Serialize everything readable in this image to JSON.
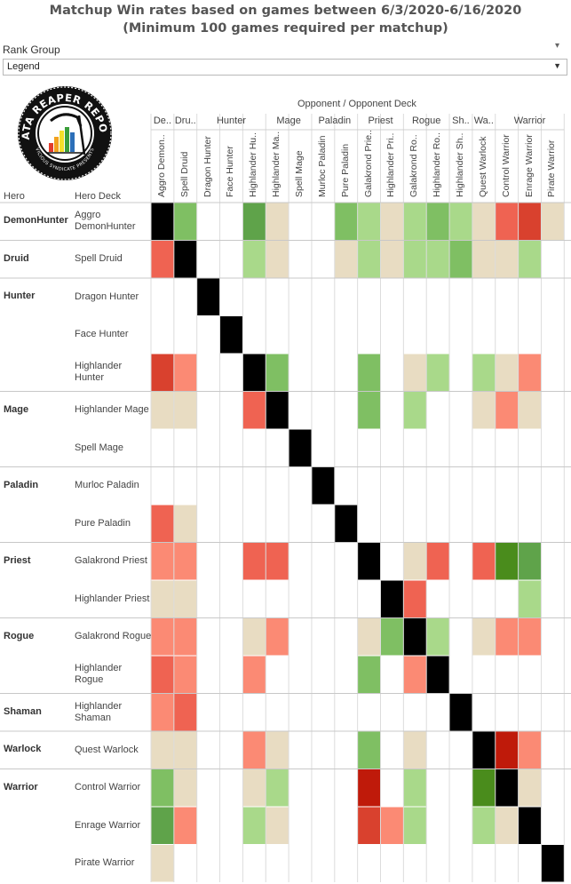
{
  "title": {
    "line1": "Matchup Win rates based on games between 6/3/2020-6/16/2020",
    "line2": "(Minimum 100 games required per matchup)"
  },
  "filter": {
    "label": "Rank Group",
    "value": "Legend"
  },
  "headers": {
    "opponent_title": "Opponent  /  Opponent Deck",
    "hero": "Hero",
    "hero_deck": "Hero Deck"
  },
  "colors": {
    "dark_green": "#4a8c1c",
    "green": "#5fa34a",
    "med_green": "#7fbf63",
    "light_green": "#a9d98a",
    "tan": "#e8dcc2",
    "light_red": "#fb8a74",
    "red": "#ef6352",
    "dark_red": "#d9412e",
    "crimson": "#bf1a0a",
    "black": "#000000"
  },
  "chart_data": {
    "type": "heatmap",
    "note": "",
    "col_classes": [
      {
        "label": "De..",
        "span": 1
      },
      {
        "label": "Dru..",
        "span": 1
      },
      {
        "label": "Hunter",
        "span": 3
      },
      {
        "label": "Mage",
        "span": 2
      },
      {
        "label": "Paladin",
        "span": 2
      },
      {
        "label": "Priest",
        "span": 2
      },
      {
        "label": "Rogue",
        "span": 2
      },
      {
        "label": "Sh..",
        "span": 1
      },
      {
        "label": "Wa..",
        "span": 1
      },
      {
        "label": "Warrior",
        "span": 3
      }
    ],
    "col_decks": [
      "Aggro Demon..",
      "Spell Druid",
      "Dragon Hunter",
      "Face Hunter",
      "Highlander Hu..",
      "Highlander Ma..",
      "Spell Mage",
      "Murloc Paladin",
      "Pure Paladin",
      "Galakrond Prie..",
      "Highlander Pri..",
      "Galakrond Ro..",
      "Highlander Ro..",
      "Highlander Sh..",
      "Quest Warlock",
      "Control Warrior",
      "Enrage Warrior",
      "Pirate Warrior"
    ],
    "row_groups": [
      {
        "hero": "DemonHunter",
        "rows": 1
      },
      {
        "hero": "Druid",
        "rows": 1
      },
      {
        "hero": "Hunter",
        "rows": 3
      },
      {
        "hero": "Mage",
        "rows": 2
      },
      {
        "hero": "Paladin",
        "rows": 2
      },
      {
        "hero": "Priest",
        "rows": 2
      },
      {
        "hero": "Rogue",
        "rows": 2
      },
      {
        "hero": "Shaman",
        "rows": 1
      },
      {
        "hero": "Warlock",
        "rows": 1
      },
      {
        "hero": "Warrior",
        "rows": 3
      }
    ],
    "row_decks": [
      "Aggro DemonHunter",
      "Spell Druid",
      "Dragon Hunter",
      "Face Hunter",
      "Highlander Hunter",
      "Highlander Mage",
      "Spell Mage",
      "Murloc Paladin",
      "Pure Paladin",
      "Galakrond Priest",
      "Highlander Priest",
      "Galakrond Rogue",
      "Highlander Rogue",
      "Highlander Shaman",
      "Quest Warlock",
      "Control Warrior",
      "Enrage Warrior",
      "Pirate Warrior"
    ],
    "legend_codes": {
      "K": "mirror (black)",
      "DG": "dark green",
      "G": "green",
      "MG": "medium green",
      "LG": "light green",
      "T": "tan",
      "LR": "light red",
      "R": "red",
      "DR": "dark red",
      "CR": "crimson",
      "": "no data"
    },
    "cells": [
      [
        "K",
        "MG",
        "",
        "",
        "G",
        "T",
        "",
        "",
        "MG",
        "LG",
        "T",
        "LG",
        "MG",
        "LG",
        "T",
        "R",
        "DR",
        "T"
      ],
      [
        "R",
        "K",
        "",
        "",
        "LG",
        "T",
        "",
        "",
        "T",
        "LG",
        "T",
        "LG",
        "LG",
        "MG",
        "T",
        "T",
        "LG",
        ""
      ],
      [
        "",
        "",
        "K",
        "",
        "",
        "",
        "",
        "",
        "",
        "",
        "",
        "",
        "",
        "",
        "",
        "",
        "",
        ""
      ],
      [
        "",
        "",
        "",
        "K",
        "",
        "",
        "",
        "",
        "",
        "",
        "",
        "",
        "",
        "",
        "",
        "",
        "",
        ""
      ],
      [
        "DR",
        "LR",
        "",
        "",
        "K",
        "MG",
        "",
        "",
        "",
        "MG",
        "",
        "T",
        "LG",
        "",
        "LG",
        "T",
        "LR",
        ""
      ],
      [
        "T",
        "T",
        "",
        "",
        "R",
        "K",
        "",
        "",
        "",
        "MG",
        "",
        "LG",
        "",
        "",
        "T",
        "LR",
        "T",
        ""
      ],
      [
        "",
        "",
        "",
        "",
        "",
        "",
        "K",
        "",
        "",
        "",
        "",
        "",
        "",
        "",
        "",
        "",
        "",
        ""
      ],
      [
        "",
        "",
        "",
        "",
        "",
        "",
        "",
        "K",
        "",
        "",
        "",
        "",
        "",
        "",
        "",
        "",
        "",
        ""
      ],
      [
        "R",
        "T",
        "",
        "",
        "",
        "",
        "",
        "",
        "K",
        "",
        "",
        "",
        "",
        "",
        "",
        "",
        "",
        ""
      ],
      [
        "LR",
        "LR",
        "",
        "",
        "R",
        "R",
        "",
        "",
        "",
        "K",
        "",
        "T",
        "R",
        "",
        "R",
        "DG",
        "G",
        ""
      ],
      [
        "T",
        "T",
        "",
        "",
        "",
        "",
        "",
        "",
        "",
        "",
        "K",
        "R",
        "",
        "",
        "",
        "",
        "LG",
        ""
      ],
      [
        "LR",
        "LR",
        "",
        "",
        "T",
        "LR",
        "",
        "",
        "",
        "T",
        "MG",
        "K",
        "LG",
        "",
        "T",
        "LR",
        "LR",
        ""
      ],
      [
        "R",
        "LR",
        "",
        "",
        "LR",
        "",
        "",
        "",
        "",
        "MG",
        "",
        "LR",
        "K",
        "",
        "",
        "",
        "",
        ""
      ],
      [
        "LR",
        "R",
        "",
        "",
        "",
        "",
        "",
        "",
        "",
        "",
        "",
        "",
        "",
        "K",
        "",
        "",
        "",
        ""
      ],
      [
        "T",
        "T",
        "",
        "",
        "LR",
        "T",
        "",
        "",
        "",
        "MG",
        "",
        "T",
        "",
        "",
        "K",
        "CR",
        "LR",
        ""
      ],
      [
        "MG",
        "T",
        "",
        "",
        "T",
        "LG",
        "",
        "",
        "",
        "CR",
        "",
        "LG",
        "",
        "",
        "DG",
        "K",
        "T",
        ""
      ],
      [
        "G",
        "LR",
        "",
        "",
        "LG",
        "T",
        "",
        "",
        "",
        "DR",
        "LR",
        "LG",
        "",
        "",
        "LG",
        "T",
        "K",
        ""
      ],
      [
        "T",
        "",
        "",
        "",
        "",
        "",
        "",
        "",
        "",
        "",
        "",
        "",
        "",
        "",
        "",
        "",
        "",
        "K"
      ]
    ]
  }
}
